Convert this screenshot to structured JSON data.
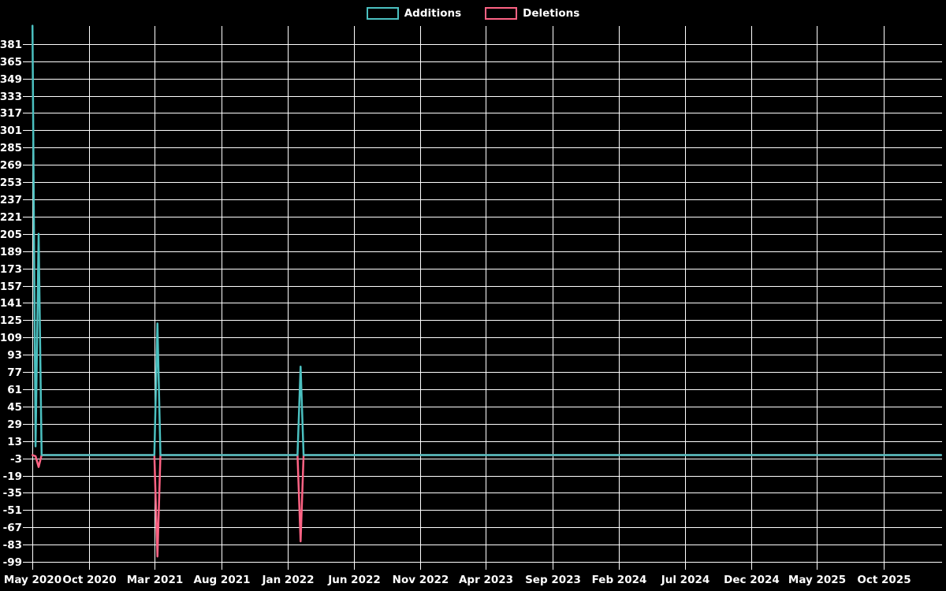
{
  "chart_data": {
    "type": "line",
    "title": "",
    "legend_position": "top",
    "background_color": "#000000",
    "grid_color": "#ffffff",
    "text_color": "#ffffff",
    "grid": true,
    "y_axis": {
      "ticks": [
        381,
        365,
        349,
        333,
        317,
        301,
        285,
        269,
        253,
        237,
        221,
        205,
        189,
        173,
        157,
        141,
        125,
        109,
        93,
        77,
        61,
        45,
        29,
        13,
        -3,
        -19,
        -35,
        -51,
        -67,
        -83,
        -99
      ],
      "step": 16,
      "range": [
        -102,
        398
      ]
    },
    "x_axis": {
      "type": "time",
      "ticks": [
        {
          "label": "May 2020",
          "date": "2020-05-24"
        },
        {
          "label": "Oct 2020",
          "date": "2020-10-01"
        },
        {
          "label": "Mar 2021",
          "date": "2021-03-01"
        },
        {
          "label": "Aug 2021",
          "date": "2021-08-01"
        },
        {
          "label": "Jan 2022",
          "date": "2022-01-01"
        },
        {
          "label": "Jun 2022",
          "date": "2022-06-01"
        },
        {
          "label": "Nov 2022",
          "date": "2022-11-01"
        },
        {
          "label": "Apr 2023",
          "date": "2023-04-01"
        },
        {
          "label": "Sep 2023",
          "date": "2023-09-01"
        },
        {
          "label": "Feb 2024",
          "date": "2024-02-01"
        },
        {
          "label": "Jul 2024",
          "date": "2024-07-01"
        },
        {
          "label": "Dec 2024",
          "date": "2024-12-01"
        },
        {
          "label": "May 2025",
          "date": "2025-05-01"
        },
        {
          "label": "Oct 2025",
          "date": "2025-10-01"
        }
      ],
      "range": [
        "2020-05-24",
        "2026-02-10"
      ]
    },
    "series": [
      {
        "name": "Additions",
        "color": "#4bc0c0",
        "points": [
          [
            "2020-05-24",
            398
          ],
          [
            "2020-05-31",
            8
          ],
          [
            "2020-06-07",
            205
          ],
          [
            "2020-06-14",
            0
          ],
          [
            "2021-02-28",
            0
          ],
          [
            "2021-03-07",
            122
          ],
          [
            "2021-03-14",
            0
          ],
          [
            "2022-01-23",
            0
          ],
          [
            "2022-01-30",
            82
          ],
          [
            "2022-02-06",
            0
          ],
          [
            "2026-02-10",
            0
          ]
        ]
      },
      {
        "name": "Deletions",
        "color": "#ff6384",
        "points": [
          [
            "2020-05-24",
            0
          ],
          [
            "2020-05-31",
            -1
          ],
          [
            "2020-06-07",
            -11
          ],
          [
            "2020-06-14",
            0
          ],
          [
            "2021-02-28",
            0
          ],
          [
            "2021-03-07",
            -94
          ],
          [
            "2021-03-14",
            0
          ],
          [
            "2022-01-23",
            0
          ],
          [
            "2022-01-30",
            -80
          ],
          [
            "2022-02-06",
            0
          ],
          [
            "2026-02-10",
            0
          ]
        ]
      }
    ]
  }
}
